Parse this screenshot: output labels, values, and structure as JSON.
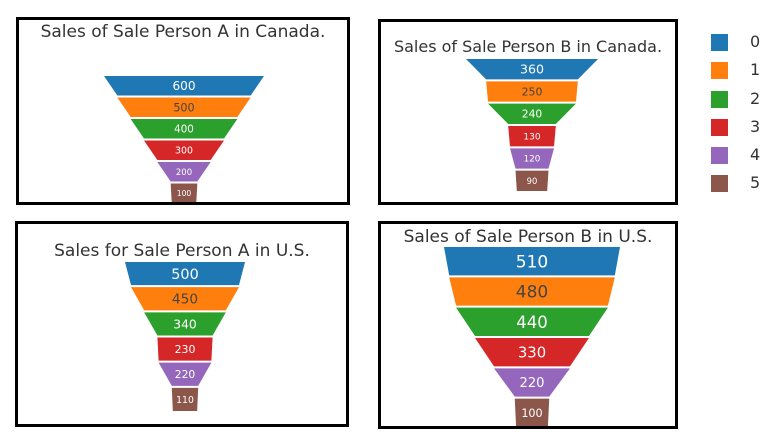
{
  "chart_data": [
    {
      "type": "funnel",
      "title": "Sales of Sale Person A in Canada.",
      "stages": [
        "0",
        "1",
        "2",
        "3",
        "4",
        "5"
      ],
      "values": [
        600,
        500,
        400,
        300,
        200,
        100
      ]
    },
    {
      "type": "funnel",
      "title": "Sales of Sale Person B in Canada.",
      "stages": [
        "0",
        "1",
        "2",
        "3",
        "4",
        "5"
      ],
      "values": [
        360,
        250,
        240,
        130,
        120,
        90
      ]
    },
    {
      "type": "funnel",
      "title": "Sales for Sale Person A in U.S.",
      "stages": [
        "0",
        "1",
        "2",
        "3",
        "4",
        "5"
      ],
      "values": [
        500,
        450,
        340,
        230,
        220,
        110
      ]
    },
    {
      "type": "funnel",
      "title": "Sales of Sale Person B in U.S.",
      "stages": [
        "0",
        "1",
        "2",
        "3",
        "4",
        "5"
      ],
      "values": [
        510,
        480,
        440,
        330,
        220,
        100
      ]
    }
  ],
  "legend": {
    "items": [
      {
        "label": "0",
        "color": "#1f77b4"
      },
      {
        "label": "1",
        "color": "#ff7f0e"
      },
      {
        "label": "2",
        "color": "#2ca02c"
      },
      {
        "label": "3",
        "color": "#d62728"
      },
      {
        "label": "4",
        "color": "#9467bd"
      },
      {
        "label": "5",
        "color": "#8c564b"
      }
    ]
  }
}
